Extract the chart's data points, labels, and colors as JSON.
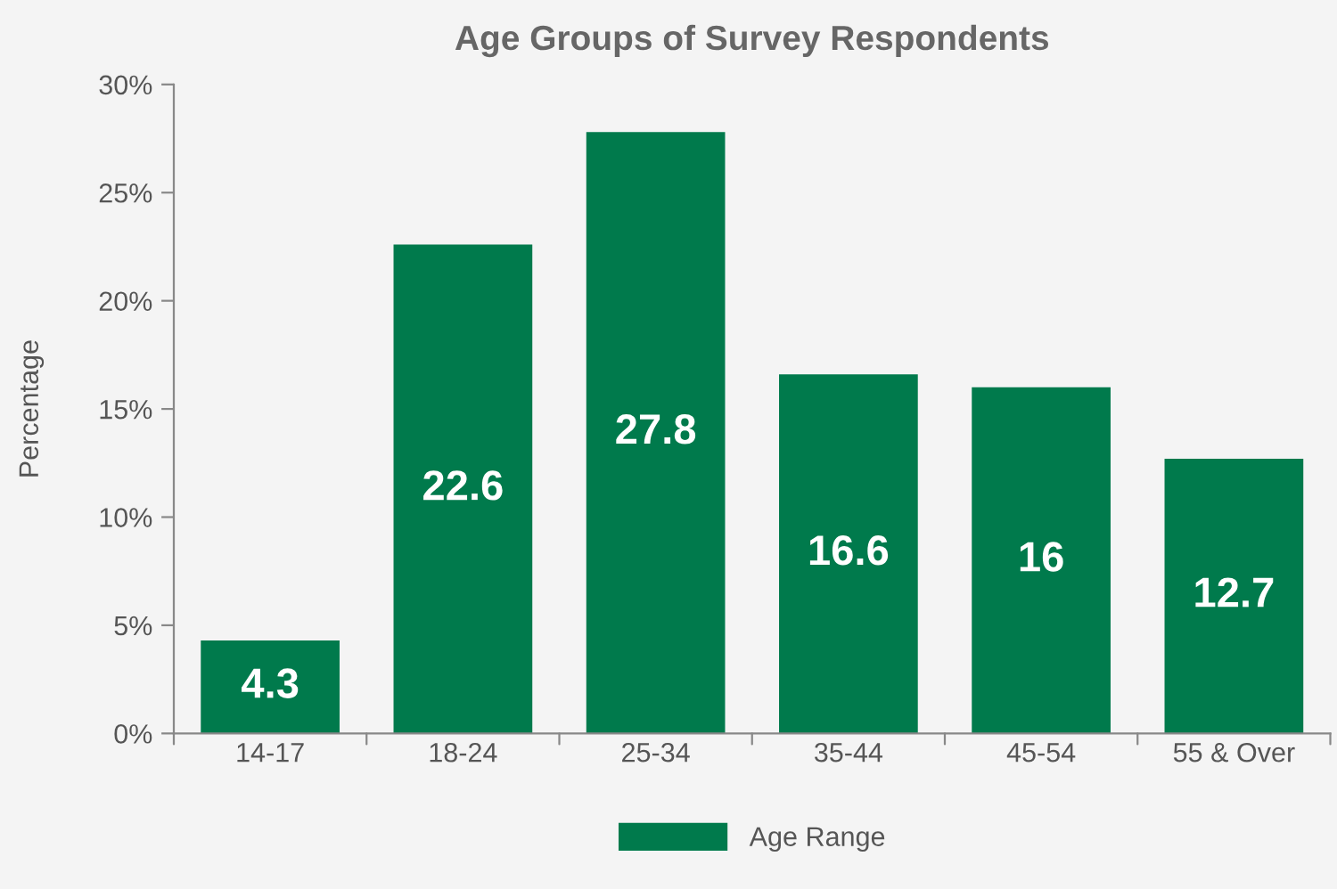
{
  "chart_data": {
    "type": "bar",
    "title": "Age Groups of Survey Respondents",
    "ylabel": "Percentage",
    "categories": [
      "14-17",
      "18-24",
      "25-34",
      "35-44",
      "45-54",
      "55 & Over"
    ],
    "series": [
      {
        "name": "Age Range",
        "color": "#007a4c",
        "values": [
          4.3,
          22.6,
          27.8,
          16.6,
          16,
          12.7
        ]
      }
    ],
    "ylim": [
      0,
      30
    ],
    "yticks": [
      {
        "value": 0,
        "label": "0%"
      },
      {
        "value": 5,
        "label": "5%"
      },
      {
        "value": 10,
        "label": "10%"
      },
      {
        "value": 15,
        "label": "15%"
      },
      {
        "value": 20,
        "label": "20%"
      },
      {
        "value": 25,
        "label": "25%"
      },
      {
        "value": 30,
        "label": "30%"
      }
    ],
    "data_labels": true,
    "grid": false,
    "legend": "bottom"
  }
}
